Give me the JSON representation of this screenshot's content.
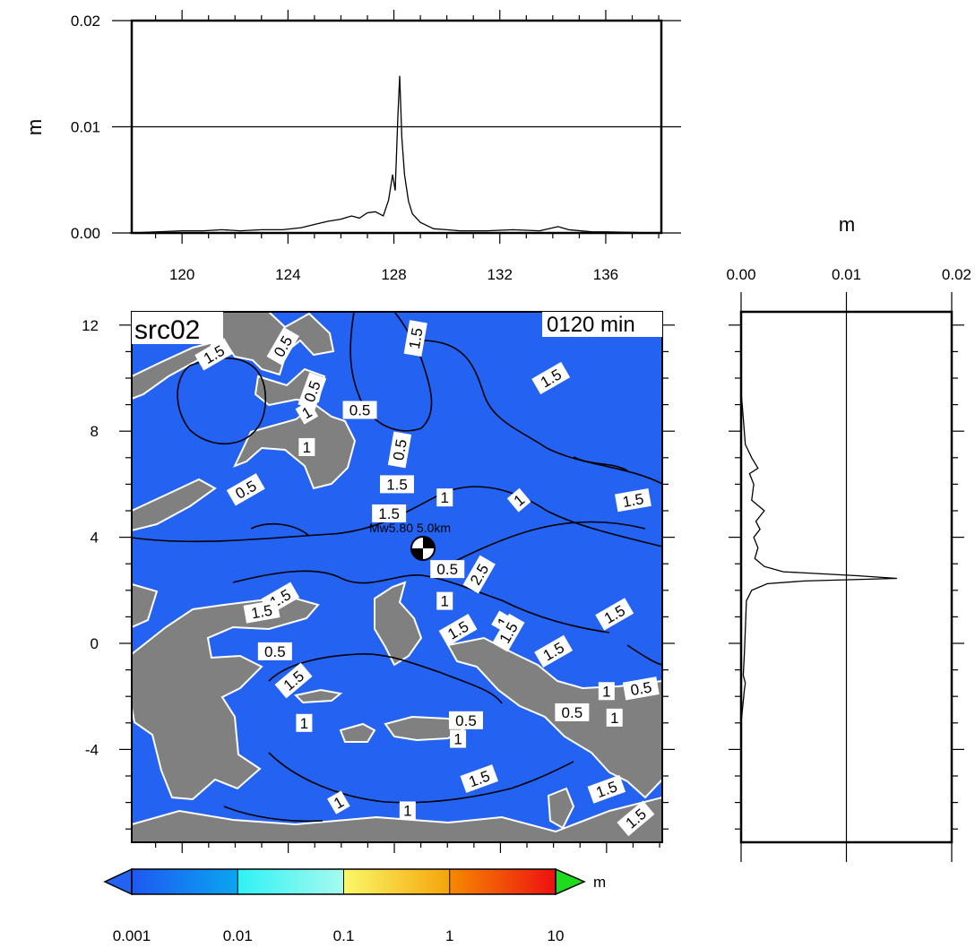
{
  "map": {
    "source_label": "src02",
    "time_label": "0120 min",
    "event_label": "Mw5.80 5.0km",
    "colors": {
      "ocean": "#2462F2",
      "land": "#808080"
    },
    "x_ticks": [
      {
        "value": 120,
        "label": "120"
      },
      {
        "value": 124,
        "label": "124"
      },
      {
        "value": 128,
        "label": "128"
      },
      {
        "value": 132,
        "label": "132"
      },
      {
        "value": 136,
        "label": "136"
      }
    ],
    "y_ticks": [
      {
        "value": 12,
        "label": "12"
      },
      {
        "value": 8,
        "label": "8"
      },
      {
        "value": 4,
        "label": "4"
      },
      {
        "value": 0,
        "label": "0"
      },
      {
        "value": -4,
        "label": "-4"
      }
    ],
    "contour_labels": [
      {
        "text": "1.5",
        "lon": 121.2,
        "lat": 10.9,
        "rot": -30
      },
      {
        "text": "0.5",
        "lon": 123.8,
        "lat": 11.2,
        "rot": -60
      },
      {
        "text": "0.5",
        "lon": 124.9,
        "lat": 9.5,
        "rot": -70
      },
      {
        "text": "0.5",
        "lon": 126.7,
        "lat": 8.8,
        "rot": 0
      },
      {
        "text": "1",
        "lon": 124.7,
        "lat": 8.7,
        "rot": -30
      },
      {
        "text": "1",
        "lon": 124.7,
        "lat": 7.4,
        "rot": 0
      },
      {
        "text": "0.5",
        "lon": 128.2,
        "lat": 7.3,
        "rot": -80
      },
      {
        "text": "1.5",
        "lon": 128.1,
        "lat": 6.0,
        "rot": 0
      },
      {
        "text": "1.5",
        "lon": 127.8,
        "lat": 4.9,
        "rot": 0
      },
      {
        "text": "1",
        "lon": 129.9,
        "lat": 5.5,
        "rot": 0
      },
      {
        "text": "1",
        "lon": 132.7,
        "lat": 5.4,
        "rot": -40
      },
      {
        "text": "1.5",
        "lon": 137.0,
        "lat": 5.4,
        "rot": -10
      },
      {
        "text": "1.5",
        "lon": 128.8,
        "lat": 11.5,
        "rot": -80
      },
      {
        "text": "1.5",
        "lon": 133.9,
        "lat": 10.0,
        "rot": -30
      },
      {
        "text": "0.5",
        "lon": 130.0,
        "lat": 2.8,
        "rot": 0
      },
      {
        "text": "2.5",
        "lon": 131.2,
        "lat": 2.6,
        "rot": -60
      },
      {
        "text": "0.5",
        "lon": 122.4,
        "lat": 5.8,
        "rot": -30
      },
      {
        "text": "1.5",
        "lon": 123.7,
        "lat": 1.7,
        "rot": -30
      },
      {
        "text": "1.5",
        "lon": 123.0,
        "lat": 1.2,
        "rot": -10
      },
      {
        "text": "1",
        "lon": 129.9,
        "lat": 1.6,
        "rot": 0
      },
      {
        "text": "1.5",
        "lon": 130.4,
        "lat": 0.5,
        "rot": -30
      },
      {
        "text": "1",
        "lon": 132.1,
        "lat": 0.8,
        "rot": -60
      },
      {
        "text": "1.5",
        "lon": 132.3,
        "lat": 0.4,
        "rot": -60
      },
      {
        "text": "1.5",
        "lon": 134.0,
        "lat": -0.3,
        "rot": -30
      },
      {
        "text": "1.5",
        "lon": 136.3,
        "lat": 1.1,
        "rot": -30
      },
      {
        "text": "0.5",
        "lon": 123.5,
        "lat": -0.3,
        "rot": 0
      },
      {
        "text": "1.5",
        "lon": 124.2,
        "lat": -1.4,
        "rot": -40
      },
      {
        "text": "1",
        "lon": 124.6,
        "lat": -3.0,
        "rot": 0
      },
      {
        "text": "1",
        "lon": 136.0,
        "lat": -1.8,
        "rot": 0
      },
      {
        "text": "0.5",
        "lon": 137.3,
        "lat": -1.7,
        "rot": -10
      },
      {
        "text": "0.5",
        "lon": 134.7,
        "lat": -2.6,
        "rot": 0
      },
      {
        "text": "1",
        "lon": 136.3,
        "lat": -2.8,
        "rot": 0
      },
      {
        "text": "0.5",
        "lon": 130.7,
        "lat": -2.9,
        "rot": 0
      },
      {
        "text": "1",
        "lon": 130.4,
        "lat": -3.6,
        "rot": 0
      },
      {
        "text": "1.5",
        "lon": 131.2,
        "lat": -5.1,
        "rot": -20
      },
      {
        "text": "1.5",
        "lon": 136.0,
        "lat": -5.5,
        "rot": -20
      },
      {
        "text": "1",
        "lon": 125.9,
        "lat": -6.0,
        "rot": -30
      },
      {
        "text": "1",
        "lon": 128.5,
        "lat": -6.3,
        "rot": 0
      },
      {
        "text": "1.5",
        "lon": 137.1,
        "lat": -6.6,
        "rot": -40
      }
    ]
  },
  "colorbar": {
    "unit": "m",
    "tick_labels": [
      "0.001",
      "0.01",
      "0.1",
      "1",
      "10"
    ],
    "segments": [
      {
        "from": "#1F58F2",
        "to": "#0AA6F0"
      },
      {
        "from": "#2EF2F5",
        "to": "#A8FAEE"
      },
      {
        "from": "#FAF86A",
        "to": "#F5A40A"
      },
      {
        "from": "#F58A00",
        "to": "#EE1010"
      }
    ],
    "under_color": "#2462F2",
    "over_color": "#1EDB1E"
  },
  "top_profile": {
    "y_unit": "m",
    "y_ticks": [
      {
        "value": 0.0,
        "label": "0.00"
      },
      {
        "value": 0.01,
        "label": "0.01"
      },
      {
        "value": 0.02,
        "label": "0.02"
      }
    ],
    "x_ticks": [
      {
        "value": 120,
        "label": "120"
      },
      {
        "value": 124,
        "label": "124"
      },
      {
        "value": 128,
        "label": "128"
      },
      {
        "value": 132,
        "label": "132"
      },
      {
        "value": 136,
        "label": "136"
      }
    ],
    "x": [
      118,
      120,
      120.8,
      121.5,
      122.2,
      123.0,
      123.8,
      124.5,
      125.0,
      125.5,
      126.0,
      126.4,
      126.7,
      127.0,
      127.3,
      127.6,
      127.8,
      127.95,
      128.05,
      128.15,
      128.22,
      128.3,
      128.4,
      128.55,
      128.7,
      129.0,
      129.5,
      130.0,
      130.5,
      131.5,
      132.5,
      133.5,
      134.2,
      134.6,
      135.5,
      136.0,
      138.1
    ],
    "y": [
      0.0,
      0.0002,
      0.0002,
      0.0003,
      0.0002,
      0.0003,
      0.0003,
      0.0005,
      0.0008,
      0.0011,
      0.0013,
      0.0016,
      0.0014,
      0.0019,
      0.002,
      0.0016,
      0.0031,
      0.0055,
      0.004,
      0.011,
      0.0148,
      0.009,
      0.0055,
      0.003,
      0.0018,
      0.001,
      0.0004,
      0.0003,
      0.0002,
      0.0002,
      0.0003,
      0.0002,
      0.0006,
      0.0003,
      0.0001,
      0.0001,
      0.0
    ]
  },
  "right_profile": {
    "x_unit": "m",
    "x_ticks": [
      {
        "value": 0.0,
        "label": "0.00"
      },
      {
        "value": 0.01,
        "label": "0.01"
      },
      {
        "value": 0.02,
        "label": "0.02"
      }
    ],
    "lat": [
      12.5,
      9.5,
      8.5,
      7.5,
      7.0,
      6.6,
      6.4,
      6.0,
      5.4,
      5.0,
      4.6,
      4.3,
      4.0,
      3.6,
      3.2,
      2.9,
      2.7,
      2.55,
      2.45,
      2.35,
      2.25,
      2.0,
      1.6,
      0.5,
      -0.5,
      -1.2,
      -1.5,
      -1.8,
      -3.0,
      -7.5
    ],
    "value": [
      0.0,
      0.0,
      0.0002,
      0.0004,
      0.001,
      0.0016,
      0.0008,
      0.0012,
      0.001,
      0.0022,
      0.0014,
      0.0018,
      0.0012,
      0.0016,
      0.0013,
      0.0022,
      0.004,
      0.011,
      0.0148,
      0.006,
      0.0025,
      0.001,
      0.0005,
      0.0004,
      0.0003,
      0.0002,
      0.0004,
      0.0003,
      0.0,
      0.0
    ]
  }
}
